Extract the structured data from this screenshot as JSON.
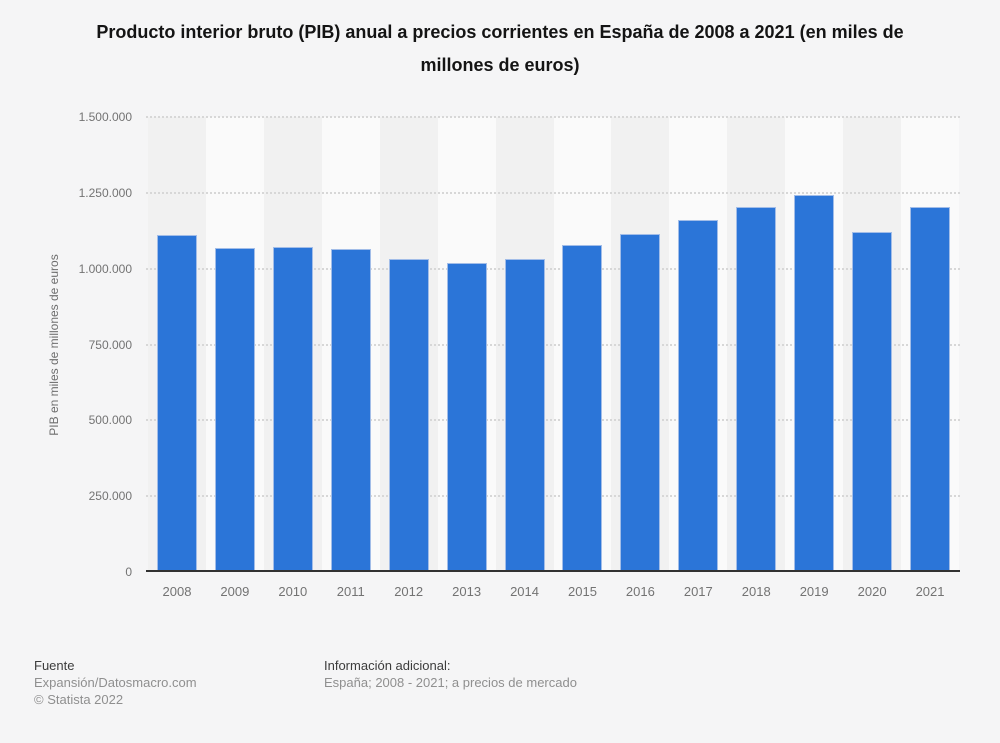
{
  "chart_data": {
    "type": "bar",
    "title": "Producto interior bruto (PIB) anual a precios corrientes en España de 2008 a 2021 (en miles de millones de euros)",
    "ylabel": "PIB en miles de millones de euros",
    "xlabel": "",
    "categories": [
      "2008",
      "2009",
      "2010",
      "2011",
      "2012",
      "2013",
      "2014",
      "2015",
      "2016",
      "2017",
      "2018",
      "2019",
      "2020",
      "2021"
    ],
    "values": [
      1110000,
      1069000,
      1073000,
      1064000,
      1031000,
      1020000,
      1032000,
      1078000,
      1114000,
      1162000,
      1203000,
      1244000,
      1122000,
      1203000
    ],
    "ylim": [
      0,
      1500000
    ],
    "yticks": {
      "values": [
        0,
        250000,
        500000,
        750000,
        1000000,
        1250000,
        1500000
      ],
      "labels": [
        "0",
        "250.000",
        "500.000",
        "750.000",
        "1.000.000",
        "1.250.000",
        "1.500.000"
      ]
    },
    "grid": "horizontal-dotted",
    "legend": "none",
    "colors": {
      "bar_fill": "#2b75d8",
      "bar_border": "#a2bde8",
      "band_dark": "#f1f1f1",
      "band_light": "#fafafa",
      "grid_line": "#d7d7d7",
      "axis_line": "#323232",
      "background": "#f5f5f6"
    }
  },
  "footer": {
    "source_heading": "Fuente",
    "source_line1": "Expansión/Datosmacro.com",
    "source_line2": "© Statista 2022",
    "info_heading": "Información adicional:",
    "info_text": "España; 2008 - 2021; a precios de mercado"
  }
}
